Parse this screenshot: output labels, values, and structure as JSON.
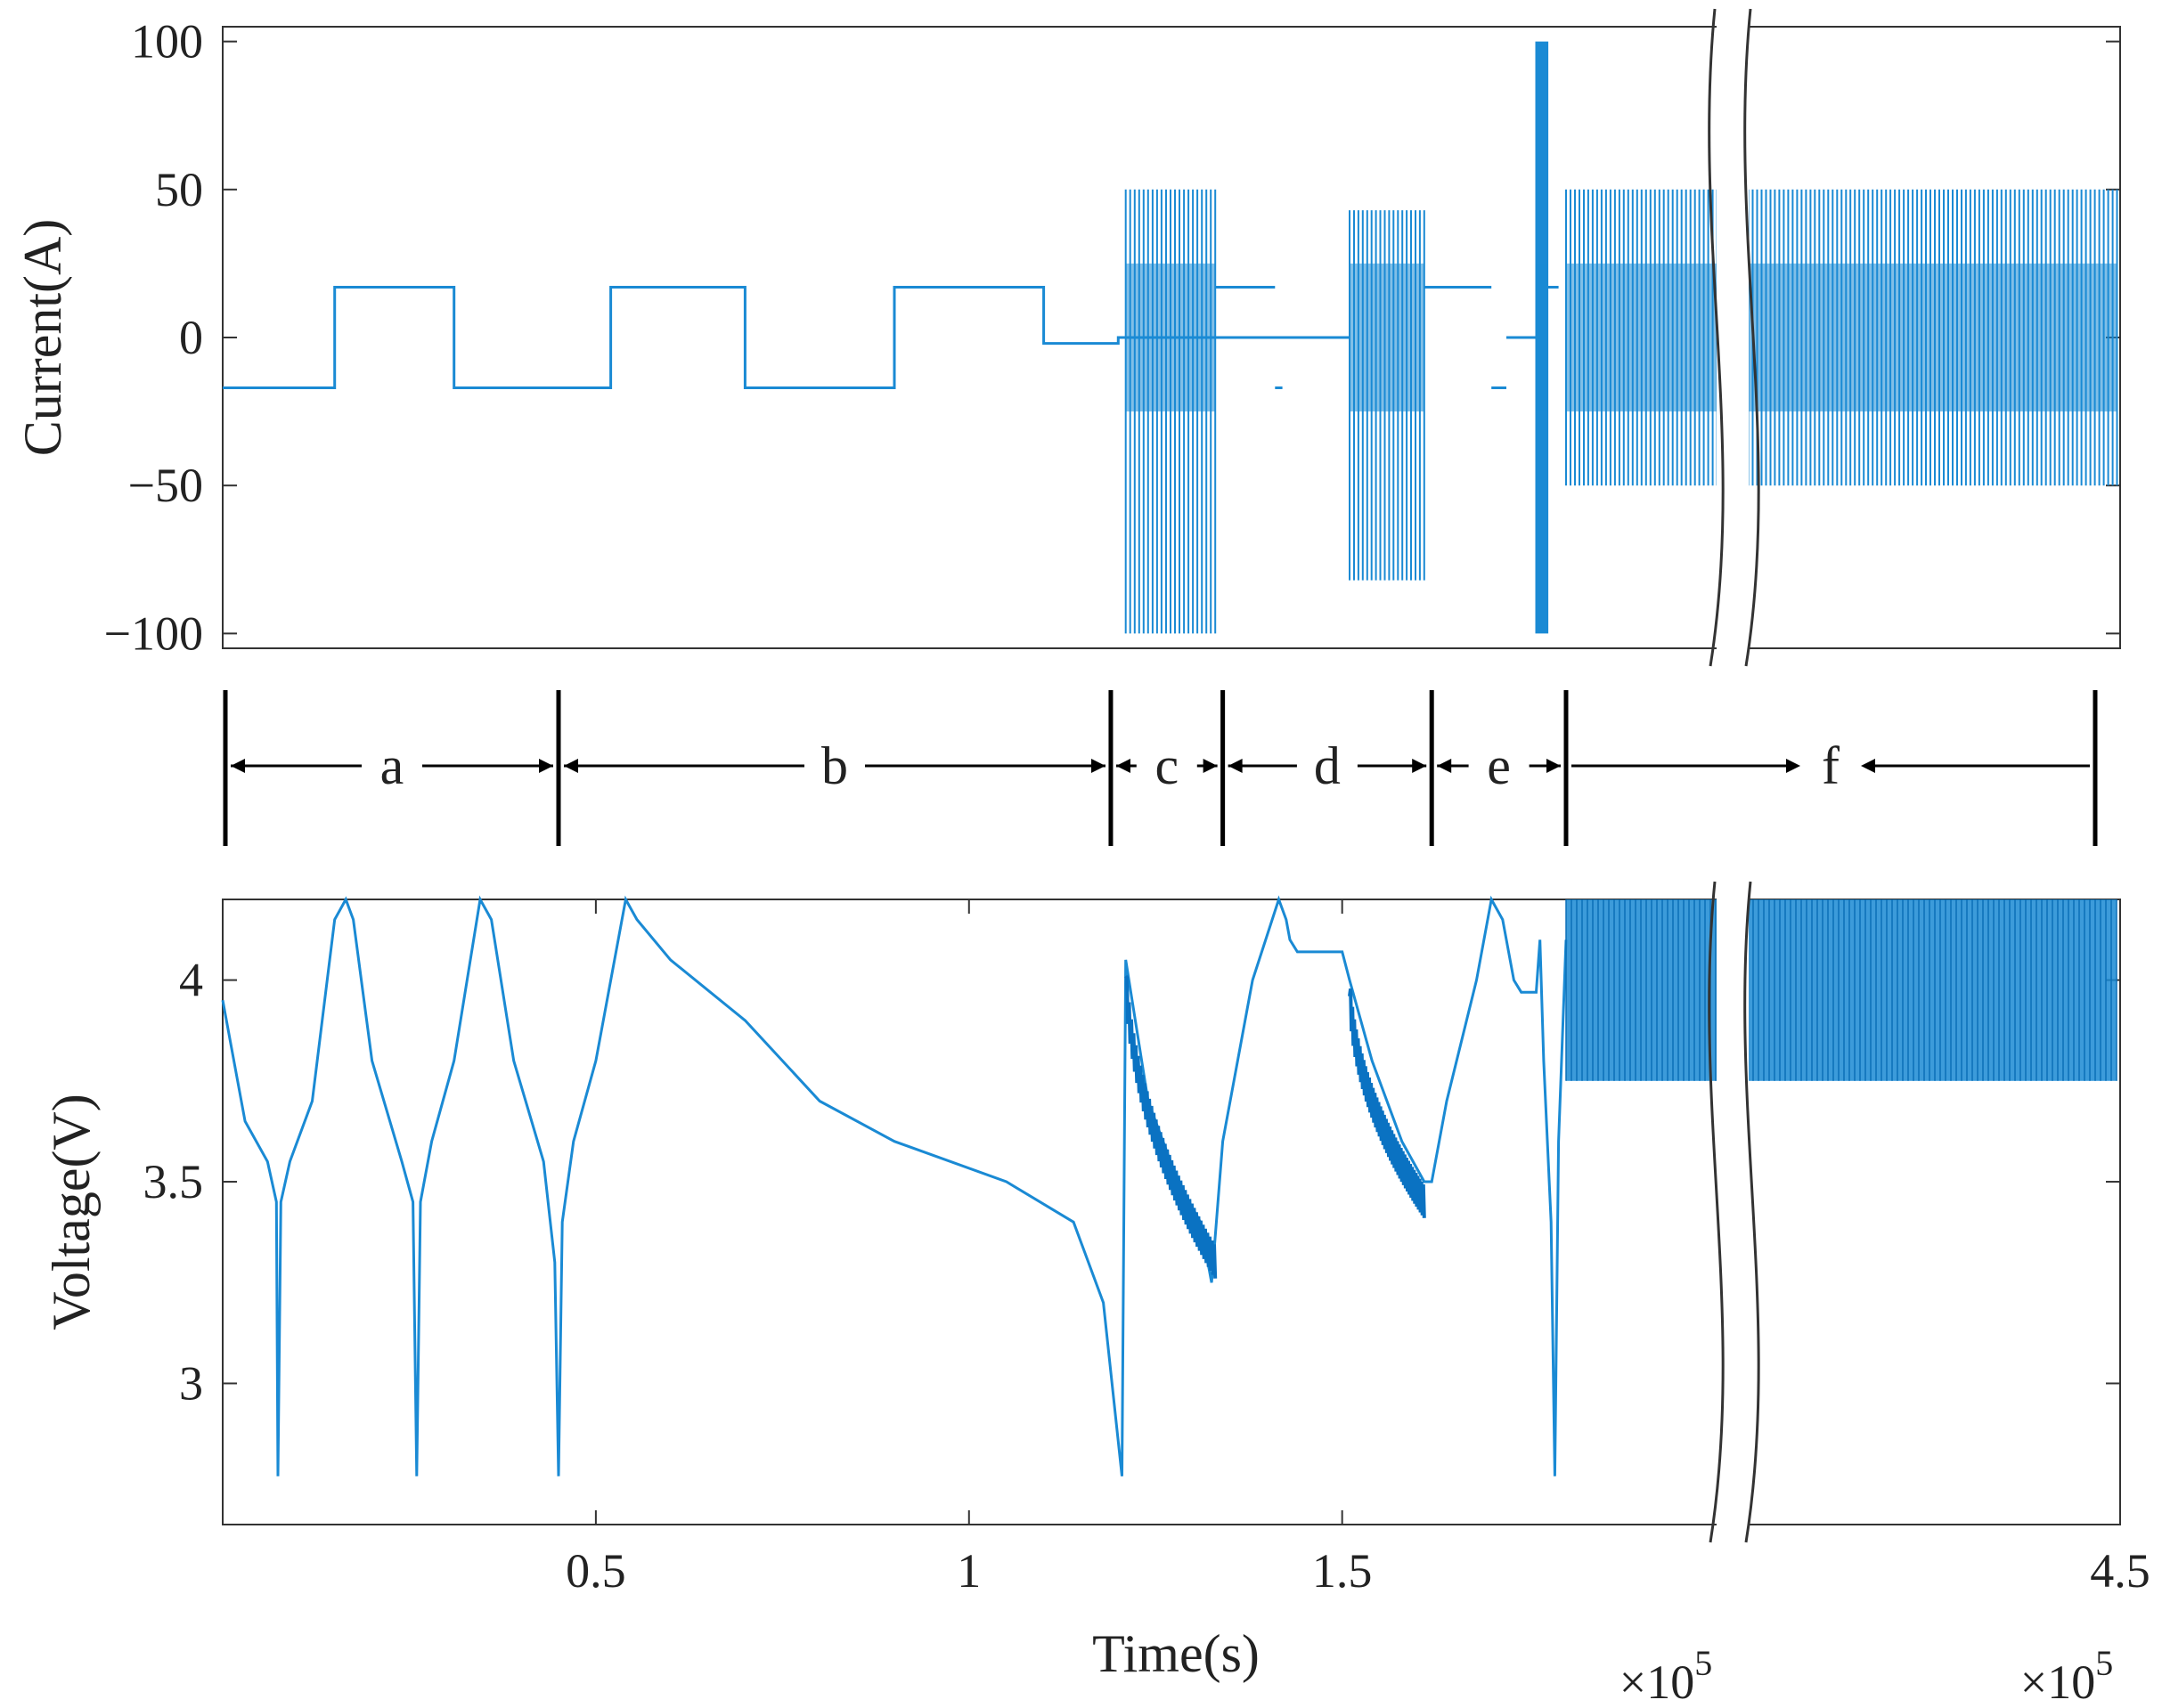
{
  "chart_data": [
    {
      "type": "line",
      "panel": "current",
      "ylabel": "Current(A)",
      "ylim": [
        -105,
        105
      ],
      "yticks": [
        100,
        50,
        0,
        -50,
        -100
      ],
      "ytick_labels": [
        "100",
        "50",
        "0",
        "−50",
        "−100"
      ],
      "xlim": [
        0,
        450000
      ],
      "axis_break": [
        200000,
        210000
      ],
      "color": "#1a8ad4",
      "series": [
        {
          "segments": [
            {
              "from": 0,
              "to": 15000,
              "value": -17
            },
            {
              "from": 15000,
              "to": 31000,
              "value": 17
            },
            {
              "from": 31000,
              "to": 52000,
              "value": -17
            },
            {
              "from": 52000,
              "to": 70000,
              "value": 17
            },
            {
              "from": 70000,
              "to": 90000,
              "value": -17
            },
            {
              "from": 90000,
              "to": 110000,
              "value": 17
            },
            {
              "from": 110000,
              "to": 120000,
              "value": -2
            },
            {
              "from": 120000,
              "to": 145000,
              "value": 0
            }
          ],
          "pulse_blocks": [
            {
              "from": 121000,
              "to": 133000,
              "min": -100,
              "max": 50
            },
            {
              "from": 151000,
              "to": 161000,
              "min": -82,
              "max": 43
            },
            {
              "from": 176000,
              "to": 177500,
              "min": -100,
              "max": 100
            },
            {
              "from": 180000,
              "to": 448000,
              "min": -50,
              "max": 50
            }
          ]
        }
      ]
    },
    {
      "type": "line",
      "panel": "voltage",
      "ylabel": "Voltage(V)",
      "xlabel": "Time(s)",
      "ylim": [
        2.75,
        4.2
      ],
      "yticks": [
        4,
        3.5,
        3
      ],
      "ytick_labels": [
        "4",
        "3.5",
        "3"
      ],
      "xlim": [
        0,
        450000
      ],
      "xticks": [
        50000,
        100000,
        150000,
        450000
      ],
      "xtick_labels": [
        "0.5",
        "1",
        "1.5",
        "4.5"
      ],
      "x_multipliers": [
        "×10",
        "×10"
      ],
      "x_multiplier_exponent": "5",
      "axis_break": [
        200000,
        210000
      ],
      "color": "#1a8ad4",
      "series": [
        {
          "points": [
            [
              0,
              3.95
            ],
            [
              3000,
              3.65
            ],
            [
              6000,
              3.55
            ],
            [
              7200,
              3.45
            ],
            [
              7400,
              2.77
            ],
            [
              7800,
              3.45
            ],
            [
              9000,
              3.55
            ],
            [
              12000,
              3.7
            ],
            [
              15000,
              4.15
            ],
            [
              16500,
              4.2
            ],
            [
              17500,
              4.15
            ],
            [
              20000,
              3.8
            ],
            [
              24000,
              3.55
            ],
            [
              25500,
              3.45
            ],
            [
              26000,
              2.77
            ],
            [
              26500,
              3.45
            ],
            [
              28000,
              3.6
            ],
            [
              31000,
              3.8
            ],
            [
              34500,
              4.2
            ],
            [
              36000,
              4.15
            ],
            [
              39000,
              3.8
            ],
            [
              43000,
              3.55
            ],
            [
              44500,
              3.3
            ],
            [
              45000,
              2.77
            ],
            [
              45500,
              3.4
            ],
            [
              47000,
              3.6
            ],
            [
              50000,
              3.8
            ],
            [
              54000,
              4.2
            ],
            [
              55500,
              4.15
            ],
            [
              60000,
              4.05
            ],
            [
              70000,
              3.9
            ],
            [
              80000,
              3.7
            ],
            [
              90000,
              3.6
            ],
            [
              105000,
              3.5
            ],
            [
              114000,
              3.4
            ],
            [
              118000,
              3.2
            ],
            [
              120500,
              2.77
            ],
            [
              121000,
              4.05
            ],
            [
              124000,
              3.7
            ],
            [
              128000,
              3.5
            ],
            [
              131000,
              3.4
            ],
            [
              132500,
              3.25
            ],
            [
              134000,
              3.6
            ],
            [
              138000,
              4.0
            ],
            [
              141500,
              4.2
            ],
            [
              142500,
              4.15
            ],
            [
              143000,
              4.1
            ],
            [
              144000,
              4.07
            ],
            [
              150000,
              4.07
            ],
            [
              151000,
              4.0
            ],
            [
              154000,
              3.8
            ],
            [
              158000,
              3.6
            ],
            [
              161000,
              3.5
            ],
            [
              162000,
              3.5
            ],
            [
              164000,
              3.7
            ],
            [
              168000,
              4.0
            ],
            [
              170000,
              4.2
            ],
            [
              171500,
              4.15
            ],
            [
              173000,
              4.0
            ],
            [
              174000,
              3.97
            ],
            [
              176000,
              3.97
            ],
            [
              176500,
              4.1
            ],
            [
              177000,
              3.8
            ],
            [
              178000,
              3.4
            ],
            [
              178500,
              2.77
            ],
            [
              179000,
              3.6
            ],
            [
              180000,
              4.1
            ]
          ],
          "band": {
            "from": 180000,
            "to": 448000,
            "min": 3.75,
            "max": 4.2
          }
        }
      ]
    }
  ],
  "segments_bar": {
    "labels": [
      "a",
      "b",
      "c",
      "d",
      "e",
      "f"
    ],
    "boundaries": [
      0,
      45000,
      119000,
      134000,
      162000,
      180000,
      450000
    ]
  }
}
